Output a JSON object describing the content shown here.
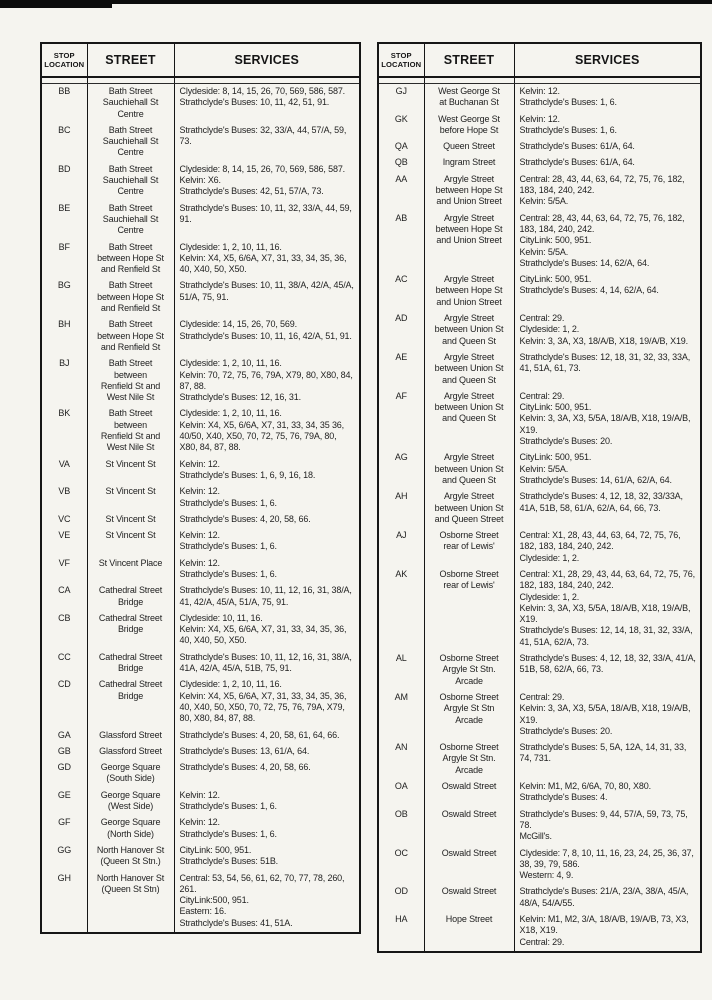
{
  "page": {
    "paper_color": "#f5f4ef",
    "ink_color": "#1b1b1b",
    "border_color": "#161616",
    "scan_bar_color": "#0c0c0c"
  },
  "tables": [
    {
      "id": "left",
      "header": {
        "stop": "STOP\nLOCATION",
        "street": "STREET",
        "services": "SERVICES"
      },
      "rows": [
        {
          "stop": "BB",
          "street": "Bath Street\nSauchiehall St\nCentre",
          "services": [
            "Clydeside: 8, 14, 15, 26, 70, 569, 586, 587.",
            "Strathclyde's Buses: 10, 11, 42, 51, 91."
          ]
        },
        {
          "stop": "BC",
          "street": "Bath Street\nSauchiehall St\nCentre",
          "services": [
            "Strathclyde's Buses: 32, 33/A, 44, 57/A, 59, 73."
          ]
        },
        {
          "stop": "BD",
          "street": "Bath Street\nSauchiehall St\nCentre",
          "services": [
            "Clydeside: 8, 14, 15, 26, 70, 569, 586, 587.",
            "Kelvin: X6.",
            "Strathclyde's Buses: 42, 51, 57/A, 73."
          ]
        },
        {
          "stop": "BE",
          "street": "Bath Street\nSauchiehall St\nCentre",
          "services": [
            "Strathclyde's Buses: 10, 11, 32, 33/A, 44, 59, 91."
          ]
        },
        {
          "stop": "BF",
          "street": "Bath Street\nbetween Hope St\nand Renfield St",
          "services": [
            "Clydeside: 1, 2, 10, 11, 16.",
            "Kelvin: X4, X5, 6/6A, X7, 31, 33, 34, 35, 36, 40, X40, 50, X50."
          ]
        },
        {
          "stop": "BG",
          "street": "Bath Street\nbetween Hope St\nand Renfield St",
          "services": [
            "Strathclyde's Buses: 10, 11, 38/A, 42/A, 45/A, 51/A, 75, 91."
          ]
        },
        {
          "stop": "BH",
          "street": "Bath Street\nbetween Hope St\nand Renfield St",
          "services": [
            "Clydeside: 14, 15, 26, 70, 569.",
            "Strathclyde's Buses: 10, 11, 16, 42/A, 51, 91."
          ]
        },
        {
          "stop": "BJ",
          "street": "Bath Street\nbetween\nRenfield St and\nWest Nile St",
          "services": [
            "Clydeside: 1, 2, 10, 11, 16.",
            "Kelvin: 70, 72, 75, 76, 79A, X79, 80, X80, 84, 87, 88.",
            "Strathclyde's Buses: 12, 16, 31."
          ]
        },
        {
          "stop": "BK",
          "street": "Bath Street\nbetween\nRenfield St and\nWest Nile St",
          "services": [
            "Clydeside: 1, 2, 10, 11, 16.",
            "Kelvin: X4, X5, 6/6A, X7, 31, 33, 34, 35 36, 40/50, X40, X50, 70, 72, 75, 76, 79A, 80, X80, 84, 87, 88."
          ]
        },
        {
          "stop": "VA",
          "street": "St Vincent St",
          "services": [
            "Kelvin: 12.",
            "Strathclyde's Buses: 1, 6, 9, 16, 18."
          ]
        },
        {
          "stop": "VB",
          "street": "St Vincent St",
          "services": [
            "Kelvin: 12.",
            "Strathclyde's Buses: 1, 6."
          ]
        },
        {
          "stop": "VC",
          "street": "St Vincent St",
          "services": [
            "Strathclyde's Buses: 4, 20, 58, 66."
          ]
        },
        {
          "stop": "VE",
          "street": "St Vincent St",
          "services": [
            "Kelvin: 12.",
            "Strathclyde's Buses: 1, 6."
          ]
        },
        {
          "stop": "VF",
          "street": "St Vincent Place",
          "services": [
            "Kelvin: 12.",
            "Strathclyde's Buses: 1, 6."
          ]
        },
        {
          "stop": "CA",
          "street": "Cathedral Street\nBridge",
          "services": [
            "Strathclyde's Buses: 10, 11, 12, 16, 31, 38/A, 41, 42/A, 45/A, 51/A, 75, 91."
          ]
        },
        {
          "stop": "CB",
          "street": "Cathedral Street\nBridge",
          "services": [
            "Clydeside: 10, 11, 16.",
            "Kelvin: X4, X5, 6/6A, X7, 31, 33, 34, 35, 36, 40, X40, 50, X50."
          ]
        },
        {
          "stop": "CC",
          "street": "Cathedral Street\nBridge",
          "services": [
            "Strathclyde's Buses: 10, 11, 12, 16, 31, 38/A, 41A, 42/A, 45/A, 51B, 75, 91."
          ]
        },
        {
          "stop": "CD",
          "street": "Cathedral Street\nBridge",
          "services": [
            "Clydeside: 1, 2, 10, 11, 16.",
            "Kelvin: X4, X5, 6/6A, X7, 31, 33, 34, 35, 36, 40, X40, 50, X50, 70, 72, 75, 76, 79A, X79, 80, X80, 84, 87, 88."
          ]
        },
        {
          "stop": "GA",
          "street": "Glassford Street",
          "services": [
            "Strathclyde's Buses: 4, 20, 58, 61, 64, 66."
          ]
        },
        {
          "stop": "GB",
          "street": "Glassford Street",
          "services": [
            "Strathclyde's Buses: 13, 61/A, 64."
          ]
        },
        {
          "stop": "GD",
          "street": "George Square\n(South Side)",
          "services": [
            "Strathclyde's Buses: 4, 20, 58, 66."
          ]
        },
        {
          "stop": "GE",
          "street": "George Square\n(West Side)",
          "services": [
            "Kelvin: 12.",
            "Strathclyde's Buses: 1, 6."
          ]
        },
        {
          "stop": "GF",
          "street": "George Square\n(North Side)",
          "services": [
            "Kelvin: 12.",
            "Strathclyde's Buses: 1, 6."
          ]
        },
        {
          "stop": "GG",
          "street": "North Hanover St\n(Queen St Stn.)",
          "services": [
            "CityLink: 500, 951.",
            "Strathclyde's Buses: 51B."
          ]
        },
        {
          "stop": "GH",
          "street": "North Hanover St\n(Queen St Stn)",
          "services": [
            "Central: 53, 54, 56, 61, 62, 70, 77, 78, 260, 261.",
            "CityLink:500, 951.",
            "Eastern: 16.",
            "Strathclyde's Buses: 41, 51A."
          ]
        }
      ]
    },
    {
      "id": "right",
      "header": {
        "stop": "STOP\nLOCATION",
        "street": "STREET",
        "services": "SERVICES"
      },
      "rows": [
        {
          "stop": "GJ",
          "street": "West George St\nat Buchanan St",
          "services": [
            "Kelvin: 12.",
            "Strathclyde's Buses: 1, 6."
          ]
        },
        {
          "stop": "GK",
          "street": "West George St\nbefore Hope St",
          "services": [
            "Kelvin: 12.",
            "Strathclyde's Buses: 1, 6."
          ]
        },
        {
          "stop": "QA",
          "street": "Queen Street",
          "services": [
            "Strathclyde's Buses: 61/A, 64."
          ]
        },
        {
          "stop": "QB",
          "street": "Ingram Street",
          "services": [
            "Strathclyde's Buses: 61/A, 64."
          ]
        },
        {
          "stop": "AA",
          "street": "Argyle Street\nbetween Hope St\nand Union Street",
          "services": [
            "Central: 28, 43, 44, 63, 64, 72, 75, 76, 182, 183, 184, 240, 242.",
            "Kelvin: 5/5A."
          ]
        },
        {
          "stop": "AB",
          "street": "Argyle Street\nbetween Hope St\nand Union Street",
          "services": [
            "Central: 28, 43, 44, 63, 64, 72, 75, 76, 182, 183, 184, 240, 242.",
            "CityLink: 500, 951.",
            "Kelvin: 5/5A.",
            "Strathclyde's Buses: 14, 62/A, 64."
          ]
        },
        {
          "stop": "AC",
          "street": "Argyle Street\nbetween Hope St\nand Union Street",
          "services": [
            "CityLink: 500, 951.",
            "Strathclyde's Buses: 4, 14, 62/A, 64."
          ]
        },
        {
          "stop": "AD",
          "street": "Argyle Street\nbetween Union St\nand Queen St",
          "services": [
            "Central: 29.",
            "Clydeside: 1, 2.",
            "Kelvin: 3, 3A, X3, 18/A/B, X18, 19/A/B, X19."
          ]
        },
        {
          "stop": "AE",
          "street": "Argyle Street\nbetween Union St\nand Queen St",
          "services": [
            "Strathclyde's Buses: 12, 18, 31, 32, 33, 33A, 41, 51A, 61, 73."
          ]
        },
        {
          "stop": "AF",
          "street": "Argyle Street\nbetween Union St\nand Queen St",
          "services": [
            "Central: 29.",
            "CityLink: 500, 951.",
            "Kelvin: 3, 3A, X3, 5/5A, 18/A/B, X18, 19/A/B, X19.",
            "Strathclyde's Buses: 20."
          ]
        },
        {
          "stop": "AG",
          "street": "Argyle Street\nbetween Union St\nand Queen St",
          "services": [
            "CityLink: 500, 951.",
            "Kelvin: 5/5A.",
            "Strathclyde's Buses: 14, 61/A, 62/A, 64."
          ]
        },
        {
          "stop": "AH",
          "street": "Argyle Street\nbetween Union St\nand Queen Street",
          "services": [
            "Strathclyde's Buses: 4, 12, 18, 32, 33/33A, 41A, 51B, 58, 61/A, 62/A, 64, 66, 73."
          ]
        },
        {
          "stop": "AJ",
          "street": "Osborne Street\nrear of Lewis'",
          "services": [
            "Central: X1, 28, 43, 44, 63, 64, 72, 75, 76, 182, 183, 184, 240, 242.",
            "Clydeside: 1, 2."
          ]
        },
        {
          "stop": "AK",
          "street": "Osborne Street\nrear of Lewis'",
          "services": [
            "Central: X1, 28, 29, 43, 44, 63, 64, 72, 75, 76, 182, 183, 184, 240, 242.",
            "Clydeside: 1, 2.",
            "Kelvin: 3, 3A, X3, 5/5A, 18/A/B, X18, 19/A/B, X19.",
            "Strathclyde's Buses: 12, 14, 18, 31, 32, 33/A, 41, 51A, 62/A, 73."
          ]
        },
        {
          "stop": "AL",
          "street": "Osborne Street\nArgyle St Stn.\nArcade",
          "services": [
            "Strathclyde's Buses: 4, 12, 18, 32, 33/A, 41/A, 51B, 58, 62/A, 66, 73."
          ]
        },
        {
          "stop": "AM",
          "street": "Osborne Street\nArgyle St Stn\nArcade",
          "services": [
            "Central: 29.",
            "Kelvin: 3, 3A, X3, 5/5A, 18/A/B, X18, 19/A/B, X19.",
            "Strathclyde's Buses: 20."
          ]
        },
        {
          "stop": "AN",
          "street": "Osborne Street\nArgyle St Stn.\nArcade",
          "services": [
            "Strathclyde's Buses: 5, 5A, 12A, 14, 31, 33, 74, 731."
          ]
        },
        {
          "stop": "OA",
          "street": "Oswald Street",
          "services": [
            "Kelvin: M1, M2, 6/6A, 70, 80, X80.",
            "Strathclyde's Buses: 4."
          ]
        },
        {
          "stop": "OB",
          "street": "Oswald Street",
          "services": [
            "Strathclyde's Buses: 9, 44, 57/A, 59, 73, 75, 78.",
            "McGill's."
          ]
        },
        {
          "stop": "OC",
          "street": "Oswald Street",
          "services": [
            "Clydeside: 7, 8, 10, 11, 16, 23, 24, 25, 36, 37, 38, 39, 79, 586.",
            "Western: 4, 9."
          ]
        },
        {
          "stop": "OD",
          "street": "Oswald Street",
          "services": [
            "Strathclyde's Buses: 21/A, 23/A, 38/A, 45/A, 48/A, 54/A/55."
          ]
        },
        {
          "stop": "HA",
          "street": "Hope Street",
          "services": [
            "Kelvin: M1, M2, 3/A, 18/A/B, 19/A/B, 73, X3, X18, X19.",
            "Central: 29."
          ]
        }
      ]
    }
  ]
}
